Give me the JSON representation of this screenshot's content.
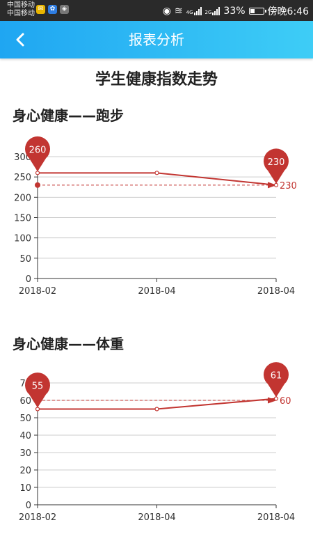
{
  "status_bar": {
    "carrier_1": "中国移动",
    "carrier_2": "中国移动",
    "battery_text": "33%",
    "battery_level": 0.33,
    "time": "傍晚6:46",
    "net_1": "4G",
    "net_2": "2G"
  },
  "header": {
    "title": "报表分析"
  },
  "page_title": "学生健康指数走势",
  "charts": [
    {
      "section_title": "身心健康——跑步",
      "chart_data": {
        "type": "line",
        "categories": [
          "2018-02",
          "2018-04",
          "2018-04"
        ],
        "series": [
          {
            "values": [
              260,
              260,
              230
            ]
          }
        ],
        "mark_line_value": 230,
        "mark_line_label": "230",
        "max_pin": {
          "index": 0,
          "value": 260,
          "label": "260"
        },
        "min_pin": {
          "index": 2,
          "value": 230,
          "label": "230"
        },
        "ylim": [
          0,
          300
        ],
        "ytick_labels": [
          "0",
          "50",
          "100",
          "150",
          "200",
          "250",
          "300"
        ],
        "grid": true,
        "colors": {
          "line": "#c23531",
          "grid": "#cccccc",
          "axis": "#333333"
        }
      }
    },
    {
      "section_title": "身心健康——体重",
      "chart_data": {
        "type": "line",
        "categories": [
          "2018-02",
          "2018-04",
          "2018-04"
        ],
        "series": [
          {
            "values": [
              55,
              55,
              61
            ]
          }
        ],
        "mark_line_value": 60,
        "mark_line_label": "60",
        "max_pin": {
          "index": 2,
          "value": 61,
          "label": "61"
        },
        "min_pin": {
          "index": 0,
          "value": 55,
          "label": "55"
        },
        "ylim": [
          0,
          70
        ],
        "ytick_labels": [
          "0",
          "10",
          "20",
          "30",
          "40",
          "50",
          "60",
          "70"
        ],
        "grid": true,
        "colors": {
          "line": "#c23531",
          "grid": "#cccccc",
          "axis": "#333333"
        }
      }
    }
  ]
}
